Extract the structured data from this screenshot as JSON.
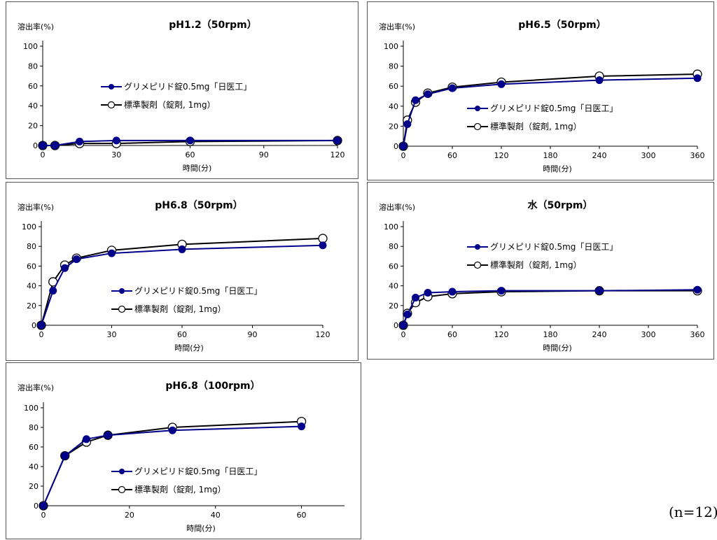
{
  "chart_data": [
    {
      "type": "line",
      "title": "pH1.2（50rpm）",
      "ylabel": "溶出率(%)",
      "xlabel": "時間(分)",
      "xlim": [
        0,
        120
      ],
      "xticks": [
        0,
        30,
        60,
        90,
        120
      ],
      "ylim": [
        0,
        100
      ],
      "yticks": [
        0,
        20,
        40,
        60,
        80,
        100
      ],
      "legend_position": "middle",
      "series": [
        {
          "name": "グリメピリド錠0.5mg「日医工」",
          "color": "#00008b",
          "marker": "filled",
          "x": [
            0,
            5,
            15,
            30,
            60,
            120
          ],
          "y": [
            0,
            0,
            4,
            5,
            5,
            5
          ]
        },
        {
          "name": "標準製剤（錠剤, 1mg）",
          "color": "#000000",
          "marker": "open",
          "x": [
            0,
            5,
            15,
            30,
            60,
            120
          ],
          "y": [
            0,
            0,
            2,
            2,
            4,
            5
          ]
        }
      ]
    },
    {
      "type": "line",
      "title": "pH6.5（50rpm）",
      "ylabel": "溶出率(%)",
      "xlabel": "時間(分)",
      "xlim": [
        0,
        360
      ],
      "xticks": [
        0,
        60,
        120,
        180,
        240,
        300,
        360
      ],
      "ylim": [
        0,
        100
      ],
      "yticks": [
        0,
        20,
        40,
        60,
        80,
        100
      ],
      "legend_position": "lower-right",
      "series": [
        {
          "name": "グリメピリド錠0.5mg「日医工」",
          "color": "#00008b",
          "marker": "filled",
          "x": [
            0,
            5,
            15,
            30,
            60,
            120,
            240,
            360
          ],
          "y": [
            0,
            22,
            46,
            52,
            58,
            62,
            66,
            68
          ]
        },
        {
          "name": "標準製剤（錠剤, 1mg）",
          "color": "#000000",
          "marker": "open",
          "x": [
            0,
            5,
            15,
            30,
            60,
            120,
            240,
            360
          ],
          "y": [
            0,
            26,
            44,
            53,
            59,
            64,
            70,
            72
          ]
        }
      ]
    },
    {
      "type": "line",
      "title": "pH6.8（50rpm）",
      "ylabel": "溶出率(%)",
      "xlabel": "時間(分)",
      "xlim": [
        0,
        120
      ],
      "xticks": [
        0,
        30,
        60,
        90,
        120
      ],
      "ylim": [
        0,
        100
      ],
      "yticks": [
        0,
        20,
        40,
        60,
        80,
        100
      ],
      "legend_position": "lower-right",
      "series": [
        {
          "name": "グリメピリド錠0.5mg「日医工」",
          "color": "#00008b",
          "marker": "filled",
          "x": [
            0,
            5,
            10,
            15,
            30,
            60,
            120
          ],
          "y": [
            0,
            35,
            58,
            67,
            73,
            77,
            81
          ]
        },
        {
          "name": "標準製剤（錠剤, 1mg）",
          "color": "#000000",
          "marker": "open",
          "x": [
            0,
            5,
            10,
            15,
            30,
            60,
            120
          ],
          "y": [
            0,
            44,
            61,
            68,
            76,
            82,
            88
          ]
        }
      ]
    },
    {
      "type": "line",
      "title": "水（50rpm）",
      "ylabel": "溶出率(%)",
      "xlabel": "時間(分)",
      "xlim": [
        0,
        360
      ],
      "xticks": [
        0,
        60,
        120,
        180,
        240,
        300,
        360
      ],
      "ylim": [
        0,
        100
      ],
      "yticks": [
        0,
        20,
        40,
        60,
        80,
        100
      ],
      "legend_position": "upper-right",
      "series": [
        {
          "name": "グリメピリド錠0.5mg「日医工」",
          "color": "#00008b",
          "marker": "filled",
          "x": [
            0,
            5,
            15,
            30,
            60,
            120,
            240,
            360
          ],
          "y": [
            0,
            11,
            28,
            33,
            34,
            35,
            35,
            36
          ]
        },
        {
          "name": "標準製剤（錠剤, 1mg）",
          "color": "#000000",
          "marker": "open",
          "x": [
            0,
            5,
            15,
            30,
            60,
            120,
            240,
            360
          ],
          "y": [
            0,
            12,
            23,
            29,
            32,
            34,
            35,
            35
          ]
        }
      ]
    },
    {
      "type": "line",
      "title": "pH6.8（100rpm）",
      "ylabel": "溶出率(%)",
      "xlabel": "時間(分)",
      "xlim": [
        0,
        70
      ],
      "xticks": [
        0,
        20,
        40,
        60
      ],
      "ylim": [
        0,
        100
      ],
      "yticks": [
        0,
        20,
        40,
        60,
        80,
        100
      ],
      "legend_position": "lower-right",
      "series": [
        {
          "name": "グリメピリド錠0.5mg「日医工」",
          "color": "#00008b",
          "marker": "filled",
          "x": [
            0,
            5,
            10,
            15,
            30,
            60
          ],
          "y": [
            0,
            51,
            68,
            72,
            77,
            81
          ]
        },
        {
          "name": "標準製剤（錠剤, 1mg）",
          "color": "#000000",
          "marker": "open",
          "x": [
            0,
            5,
            10,
            15,
            30,
            60
          ],
          "y": [
            0,
            51,
            65,
            72,
            80,
            86
          ]
        }
      ]
    }
  ],
  "footnote": "(n=12)"
}
